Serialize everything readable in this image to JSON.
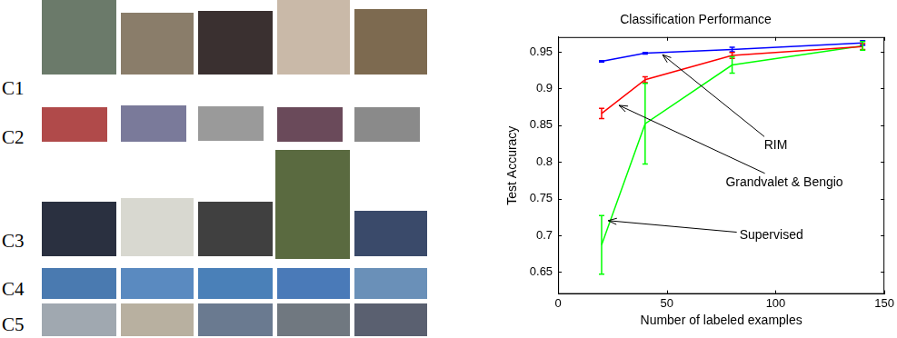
{
  "image_grid": {
    "row_labels": [
      "C1",
      "C2",
      "C3",
      "C4",
      "C5"
    ]
  },
  "chart_data": {
    "type": "line",
    "title": "Classification Performance",
    "x_label": "Number of labeled examples",
    "y_label": "Test Accuracy",
    "x": [
      20,
      40,
      80,
      140
    ],
    "series": [
      {
        "name": "RIM",
        "color": "#0000ff",
        "values": [
          0.937,
          0.948,
          0.953,
          0.962
        ],
        "errors": [
          0.001,
          0.001,
          0.003,
          0.003
        ]
      },
      {
        "name": "Grandvalet & Bengio",
        "color": "#ff0000",
        "values": [
          0.866,
          0.912,
          0.945,
          0.957
        ],
        "errors": [
          0.007,
          0.004,
          0.004,
          0.004
        ]
      },
      {
        "name": "Supervised",
        "color": "#00ff00",
        "values": [
          0.687,
          0.852,
          0.932,
          0.958
        ],
        "errors": [
          0.04,
          0.055,
          0.011,
          0.006
        ]
      }
    ],
    "xlim": [
      0,
      150
    ],
    "xticks": [
      0,
      50,
      100,
      150
    ],
    "ylim": [
      0.62,
      0.97
    ],
    "yticks": [
      0.65,
      0.7,
      0.75,
      0.8,
      0.85,
      0.9,
      0.95
    ],
    "grid": false,
    "annotations": [
      {
        "text": "RIM",
        "x": 100,
        "y": 0.822,
        "arrow_x": 48,
        "arrow_y": 0.946
      },
      {
        "text": "Grandvalet & Bengio",
        "x": 104,
        "y": 0.772,
        "arrow_x": 28,
        "arrow_y": 0.877
      },
      {
        "text": "Supervised",
        "x": 98,
        "y": 0.7,
        "arrow_x": 23,
        "arrow_y": 0.72
      }
    ]
  }
}
